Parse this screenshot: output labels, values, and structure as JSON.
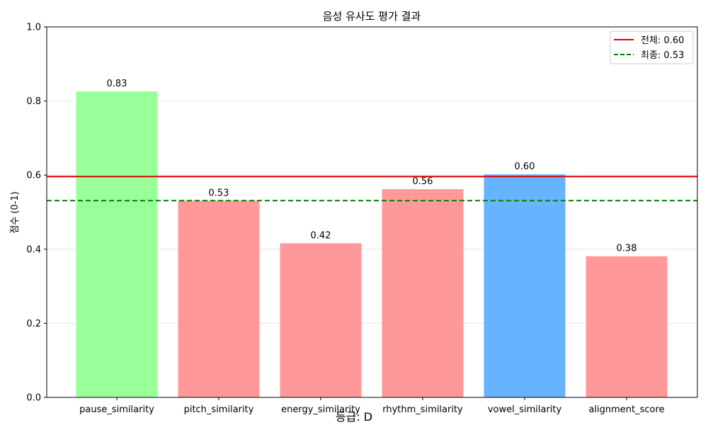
{
  "chart_data": {
    "type": "bar",
    "title": "음성 유사도 평가 결과",
    "xlabel": "",
    "ylabel": "점수 (0-1)",
    "ylim": [
      0,
      1
    ],
    "yticks": [
      "0.0",
      "0.2",
      "0.4",
      "0.6",
      "0.8",
      "1.0"
    ],
    "grid": "y",
    "categories": [
      "pause_similarity",
      "pitch_similarity",
      "energy_similarity",
      "rhythm_similarity",
      "vowel_similarity",
      "alignment_score"
    ],
    "values": [
      0.826,
      0.531,
      0.416,
      0.562,
      0.602,
      0.381
    ],
    "value_labels": [
      "0.83",
      "0.53",
      "0.42",
      "0.56",
      "0.60",
      "0.38"
    ],
    "bar_colors": [
      "#99ff99",
      "#ff9999",
      "#ff9999",
      "#ff9999",
      "#66b3ff",
      "#ff9999"
    ],
    "reference_lines": [
      {
        "label": "전체: 0.60",
        "value": 0.596,
        "color": "#e00000",
        "style": "solid"
      },
      {
        "label": "최종: 0.53",
        "value": 0.531,
        "color": "#008000",
        "style": "dashed"
      }
    ],
    "legend_position": "top-right",
    "footer_text": "등급: D"
  }
}
